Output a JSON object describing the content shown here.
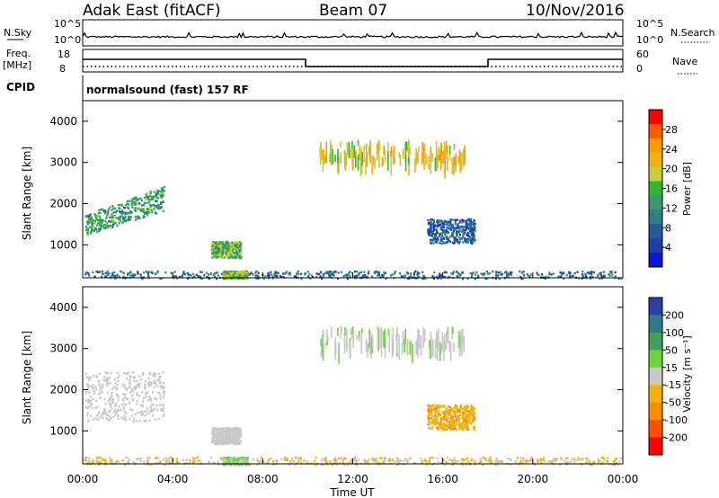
{
  "header": {
    "station": "Adak East (fitACF)",
    "beam": "Beam 07",
    "date": "10/Nov/2016"
  },
  "top_panels": {
    "nsky_label": "N.Sky",
    "nsky_ticks": [
      "10^5",
      "10^0"
    ],
    "nsearch_label": "N.Search",
    "nsearch_ticks": [
      "10^5",
      "10^0"
    ],
    "freq_label": "Freq.",
    "freq_unit": "[MHz]",
    "freq_ticks": [
      "18",
      "8"
    ],
    "nave_label": "Nave",
    "nave_ticks": [
      "60",
      "0"
    ],
    "cpid_label": "CPID",
    "cpid_text": "normalsound (fast)  157  RF"
  },
  "colorbars": {
    "power": {
      "label": "Power [dB]",
      "ticks": [
        "28",
        "24",
        "20",
        "16",
        "12",
        "8",
        "4"
      ],
      "colors": [
        "#ff0000",
        "#ff5a00",
        "#ff9a00",
        "#f2b20a",
        "#c9cc3a",
        "#2fb82f",
        "#3a9a6e",
        "#2f7f88",
        "#225a9c",
        "#1f3fa8",
        "#0b16d8"
      ]
    },
    "velocity": {
      "label": "Velocity [m s⁻¹]",
      "ticks": [
        "200",
        "100",
        "50",
        "15",
        "-15",
        "-50",
        "-100",
        "-200"
      ],
      "colors": [
        "#2b3fa6",
        "#2f7a8a",
        "#3fa05a",
        "#6cd23a",
        "#c8c8c8",
        "#f2b20a",
        "#ff8c00",
        "#ff5000",
        "#ff0000"
      ]
    }
  },
  "chart_data": [
    {
      "type": "heatmap",
      "panel": "power",
      "xlabel": "Time UT",
      "ylabel": "Slant Range [km]",
      "x_ticks": [
        "00:00",
        "04:00",
        "08:00",
        "12:00",
        "16:00",
        "20:00",
        "00:00"
      ],
      "y_ticks": [
        "1000",
        "2000",
        "3000",
        "4000"
      ],
      "xlim_hours": [
        0,
        24
      ],
      "ylim_km": [
        200,
        4500
      ],
      "blobs": [
        {
          "t0": 0.1,
          "t1": 3.6,
          "r0": 1250,
          "r1": 2450,
          "value_db": 12,
          "desc": "rising band"
        },
        {
          "t0": 5.7,
          "t1": 7.0,
          "r0": 700,
          "r1": 1100,
          "value_db": 14
        },
        {
          "t0": 15.3,
          "t1": 17.4,
          "r0": 1050,
          "r1": 1650,
          "value_db": 6
        },
        {
          "t0": 10.5,
          "t1": 17.0,
          "r0": 3100,
          "r1": 3550,
          "value_db": 20
        },
        {
          "t0": 0.0,
          "t1": 24.0,
          "r0": 200,
          "r1": 380,
          "value_db": 8
        },
        {
          "t0": 6.2,
          "t1": 7.3,
          "r0": 200,
          "r1": 380,
          "value_db": 16
        }
      ]
    },
    {
      "type": "heatmap",
      "panel": "velocity",
      "xlabel": "Time UT",
      "ylabel": "Slant Range [km]",
      "x_ticks": [
        "00:00",
        "04:00",
        "08:00",
        "12:00",
        "16:00",
        "20:00",
        "00:00"
      ],
      "y_ticks": [
        "1000",
        "2000",
        "3000",
        "4000"
      ],
      "xlim_hours": [
        0,
        24
      ],
      "ylim_km": [
        200,
        4500
      ],
      "blobs": [
        {
          "t0": 0.1,
          "t1": 3.6,
          "r0": 1250,
          "r1": 2450,
          "value_ms": 0
        },
        {
          "t0": 5.7,
          "t1": 7.0,
          "r0": 700,
          "r1": 1100,
          "value_ms": 0
        },
        {
          "t0": 15.3,
          "t1": 17.4,
          "r0": 1050,
          "r1": 1650,
          "value_ms": -80
        },
        {
          "t0": 10.5,
          "t1": 17.0,
          "r0": 3100,
          "r1": 3550,
          "value_ms": 20
        },
        {
          "t0": 0.0,
          "t1": 24.0,
          "r0": 200,
          "r1": 380,
          "value_ms": -30
        },
        {
          "t0": 6.2,
          "t1": 7.3,
          "r0": 200,
          "r1": 380,
          "value_ms": 30
        }
      ]
    }
  ]
}
